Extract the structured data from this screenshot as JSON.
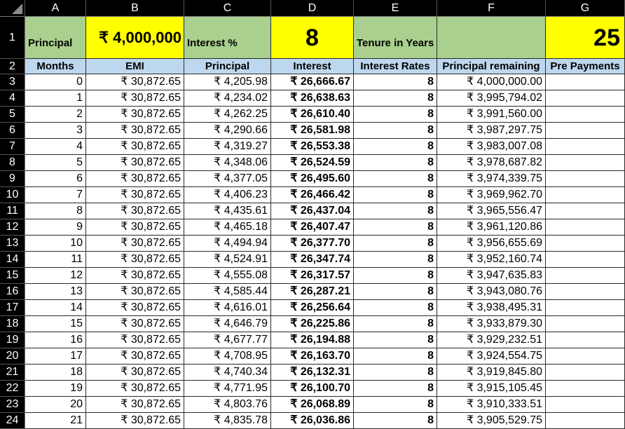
{
  "columns": [
    "A",
    "B",
    "C",
    "D",
    "E",
    "F",
    "G"
  ],
  "row_numbers": [
    "1",
    "2",
    "3",
    "4",
    "5",
    "6",
    "7",
    "8",
    "9",
    "10",
    "11",
    "12",
    "13",
    "14",
    "15",
    "16",
    "17",
    "18",
    "19",
    "20",
    "21",
    "22",
    "23",
    "24"
  ],
  "inputs": {
    "principal_label": "Principal",
    "principal_value": "₹ 4,000,000",
    "interest_label": "Interest %",
    "interest_value": "8",
    "tenure_label": "Tenure in Years",
    "tenure_value": "25"
  },
  "table": {
    "headers": [
      "Months",
      "EMI",
      "Principal",
      "Interest",
      "Interest Rates",
      "Principal remaining",
      "Pre Payments"
    ],
    "rows": [
      [
        "0",
        "₹ 30,872.65",
        "₹ 4,205.98",
        "₹ 26,666.67",
        "8",
        "₹ 4,000,000.00",
        ""
      ],
      [
        "1",
        "₹ 30,872.65",
        "₹ 4,234.02",
        "₹ 26,638.63",
        "8",
        "₹ 3,995,794.02",
        ""
      ],
      [
        "2",
        "₹ 30,872.65",
        "₹ 4,262.25",
        "₹ 26,610.40",
        "8",
        "₹ 3,991,560.00",
        ""
      ],
      [
        "3",
        "₹ 30,872.65",
        "₹ 4,290.66",
        "₹ 26,581.98",
        "8",
        "₹ 3,987,297.75",
        ""
      ],
      [
        "4",
        "₹ 30,872.65",
        "₹ 4,319.27",
        "₹ 26,553.38",
        "8",
        "₹ 3,983,007.08",
        ""
      ],
      [
        "5",
        "₹ 30,872.65",
        "₹ 4,348.06",
        "₹ 26,524.59",
        "8",
        "₹ 3,978,687.82",
        ""
      ],
      [
        "6",
        "₹ 30,872.65",
        "₹ 4,377.05",
        "₹ 26,495.60",
        "8",
        "₹ 3,974,339.75",
        ""
      ],
      [
        "7",
        "₹ 30,872.65",
        "₹ 4,406.23",
        "₹ 26,466.42",
        "8",
        "₹ 3,969,962.70",
        ""
      ],
      [
        "8",
        "₹ 30,872.65",
        "₹ 4,435.61",
        "₹ 26,437.04",
        "8",
        "₹ 3,965,556.47",
        ""
      ],
      [
        "9",
        "₹ 30,872.65",
        "₹ 4,465.18",
        "₹ 26,407.47",
        "8",
        "₹ 3,961,120.86",
        ""
      ],
      [
        "10",
        "₹ 30,872.65",
        "₹ 4,494.94",
        "₹ 26,377.70",
        "8",
        "₹ 3,956,655.69",
        ""
      ],
      [
        "11",
        "₹ 30,872.65",
        "₹ 4,524.91",
        "₹ 26,347.74",
        "8",
        "₹ 3,952,160.74",
        ""
      ],
      [
        "12",
        "₹ 30,872.65",
        "₹ 4,555.08",
        "₹ 26,317.57",
        "8",
        "₹ 3,947,635.83",
        ""
      ],
      [
        "13",
        "₹ 30,872.65",
        "₹ 4,585.44",
        "₹ 26,287.21",
        "8",
        "₹ 3,943,080.76",
        ""
      ],
      [
        "14",
        "₹ 30,872.65",
        "₹ 4,616.01",
        "₹ 26,256.64",
        "8",
        "₹ 3,938,495.31",
        ""
      ],
      [
        "15",
        "₹ 30,872.65",
        "₹ 4,646.79",
        "₹ 26,225.86",
        "8",
        "₹ 3,933,879.30",
        ""
      ],
      [
        "16",
        "₹ 30,872.65",
        "₹ 4,677.77",
        "₹ 26,194.88",
        "8",
        "₹ 3,929,232.51",
        ""
      ],
      [
        "17",
        "₹ 30,872.65",
        "₹ 4,708.95",
        "₹ 26,163.70",
        "8",
        "₹ 3,924,554.75",
        ""
      ],
      [
        "18",
        "₹ 30,872.65",
        "₹ 4,740.34",
        "₹ 26,132.31",
        "8",
        "₹ 3,919,845.80",
        ""
      ],
      [
        "19",
        "₹ 30,872.65",
        "₹ 4,771.95",
        "₹ 26,100.70",
        "8",
        "₹ 3,915,105.45",
        ""
      ],
      [
        "20",
        "₹ 30,872.65",
        "₹ 4,803.76",
        "₹ 26,068.89",
        "8",
        "₹ 3,910,333.51",
        ""
      ],
      [
        "21",
        "₹ 30,872.65",
        "₹ 4,835.78",
        "₹ 26,036.86",
        "8",
        "₹ 3,905,529.75",
        ""
      ]
    ]
  },
  "colors": {
    "label_fill": "#a9d08e",
    "value_fill": "#ffff00",
    "header_fill": "#bdd7ee"
  }
}
